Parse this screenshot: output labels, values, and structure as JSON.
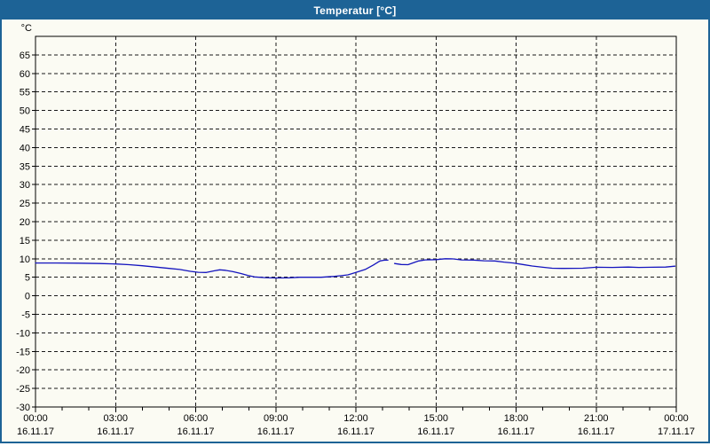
{
  "window": {
    "title": "Temperatur [°C]"
  },
  "colors": {
    "titlebar_bg": "#1d6396",
    "title_text": "#ffffff",
    "window_bg": "#fbfbf3",
    "window_border": "#1d6396",
    "plot_border": "#000000",
    "grid": "#1a1a1a",
    "axis_text": "#000000",
    "line": "#1414be"
  },
  "chart_data": {
    "type": "line",
    "title": "Temperatur [°C]",
    "y_unit_label": "°C",
    "ylim": [
      -30,
      70
    ],
    "y_ticks": [
      65,
      60,
      55,
      50,
      45,
      40,
      35,
      30,
      25,
      20,
      15,
      10,
      5,
      0,
      -5,
      -10,
      -15,
      -20,
      -25,
      -30
    ],
    "x_range_hours": [
      0,
      24
    ],
    "x_minor_tick_every_hours": 1,
    "x_grid_every_hours": 3,
    "grid_style": "dashed",
    "legend_position": "none",
    "x_labels": [
      {
        "hour": 0,
        "time": "00:00",
        "date": "16.11.17"
      },
      {
        "hour": 3,
        "time": "03:00",
        "date": "16.11.17"
      },
      {
        "hour": 6,
        "time": "06:00",
        "date": "16.11.17"
      },
      {
        "hour": 9,
        "time": "09:00",
        "date": "16.11.17"
      },
      {
        "hour": 12,
        "time": "12:00",
        "date": "16.11.17"
      },
      {
        "hour": 15,
        "time": "15:00",
        "date": "16.11.17"
      },
      {
        "hour": 18,
        "time": "18:00",
        "date": "16.11.17"
      },
      {
        "hour": 21,
        "time": "21:00",
        "date": "16.11.17"
      },
      {
        "hour": 24,
        "time": "00:00",
        "date": "17.11.17"
      }
    ],
    "series": [
      {
        "name": "Temperatur",
        "unit": "°C",
        "color": "#1414be",
        "segments": [
          [
            [
              0,
              8.85
            ],
            [
              0.8,
              8.85
            ],
            [
              1.6,
              8.8
            ],
            [
              2.4,
              8.7
            ],
            [
              3,
              8.6
            ],
            [
              3.5,
              8.4
            ],
            [
              4,
              8.1
            ],
            [
              4.5,
              7.75
            ],
            [
              5,
              7.4
            ],
            [
              5.4,
              7.1
            ],
            [
              5.8,
              6.6
            ],
            [
              6.1,
              6.35
            ],
            [
              6.4,
              6.3
            ],
            [
              6.7,
              6.75
            ],
            [
              6.9,
              7.0
            ],
            [
              7.1,
              6.9
            ],
            [
              7.4,
              6.5
            ],
            [
              7.7,
              6.0
            ],
            [
              7.95,
              5.5
            ],
            [
              8.2,
              5.1
            ],
            [
              8.6,
              4.9
            ],
            [
              9.0,
              4.8
            ],
            [
              9.5,
              4.85
            ],
            [
              9.9,
              5.0
            ],
            [
              10.7,
              5.0
            ],
            [
              11.2,
              5.25
            ],
            [
              11.7,
              5.65
            ],
            [
              12.0,
              6.3
            ],
            [
              12.35,
              7.1
            ],
            [
              12.65,
              8.3
            ],
            [
              12.9,
              9.4
            ],
            [
              13.05,
              9.6
            ],
            [
              13.2,
              9.65
            ]
          ],
          [
            [
              13.45,
              8.7
            ],
            [
              13.7,
              8.45
            ],
            [
              13.95,
              8.4
            ],
            [
              14.15,
              8.9
            ],
            [
              14.35,
              9.4
            ],
            [
              14.6,
              9.7
            ],
            [
              15.0,
              9.75
            ],
            [
              15.35,
              10.0
            ],
            [
              15.65,
              9.95
            ],
            [
              15.95,
              9.7
            ],
            [
              16.4,
              9.65
            ],
            [
              16.8,
              9.45
            ],
            [
              17.2,
              9.4
            ],
            [
              17.55,
              9.1
            ],
            [
              17.9,
              8.85
            ],
            [
              18.25,
              8.45
            ],
            [
              18.6,
              8.05
            ],
            [
              19.0,
              7.7
            ],
            [
              19.35,
              7.45
            ],
            [
              19.7,
              7.4
            ],
            [
              20.5,
              7.45
            ],
            [
              21.0,
              7.7
            ],
            [
              21.6,
              7.65
            ],
            [
              22.2,
              7.75
            ],
            [
              22.6,
              7.65
            ],
            [
              23.1,
              7.7
            ],
            [
              23.6,
              7.75
            ],
            [
              23.95,
              8.0
            ]
          ]
        ]
      }
    ]
  }
}
